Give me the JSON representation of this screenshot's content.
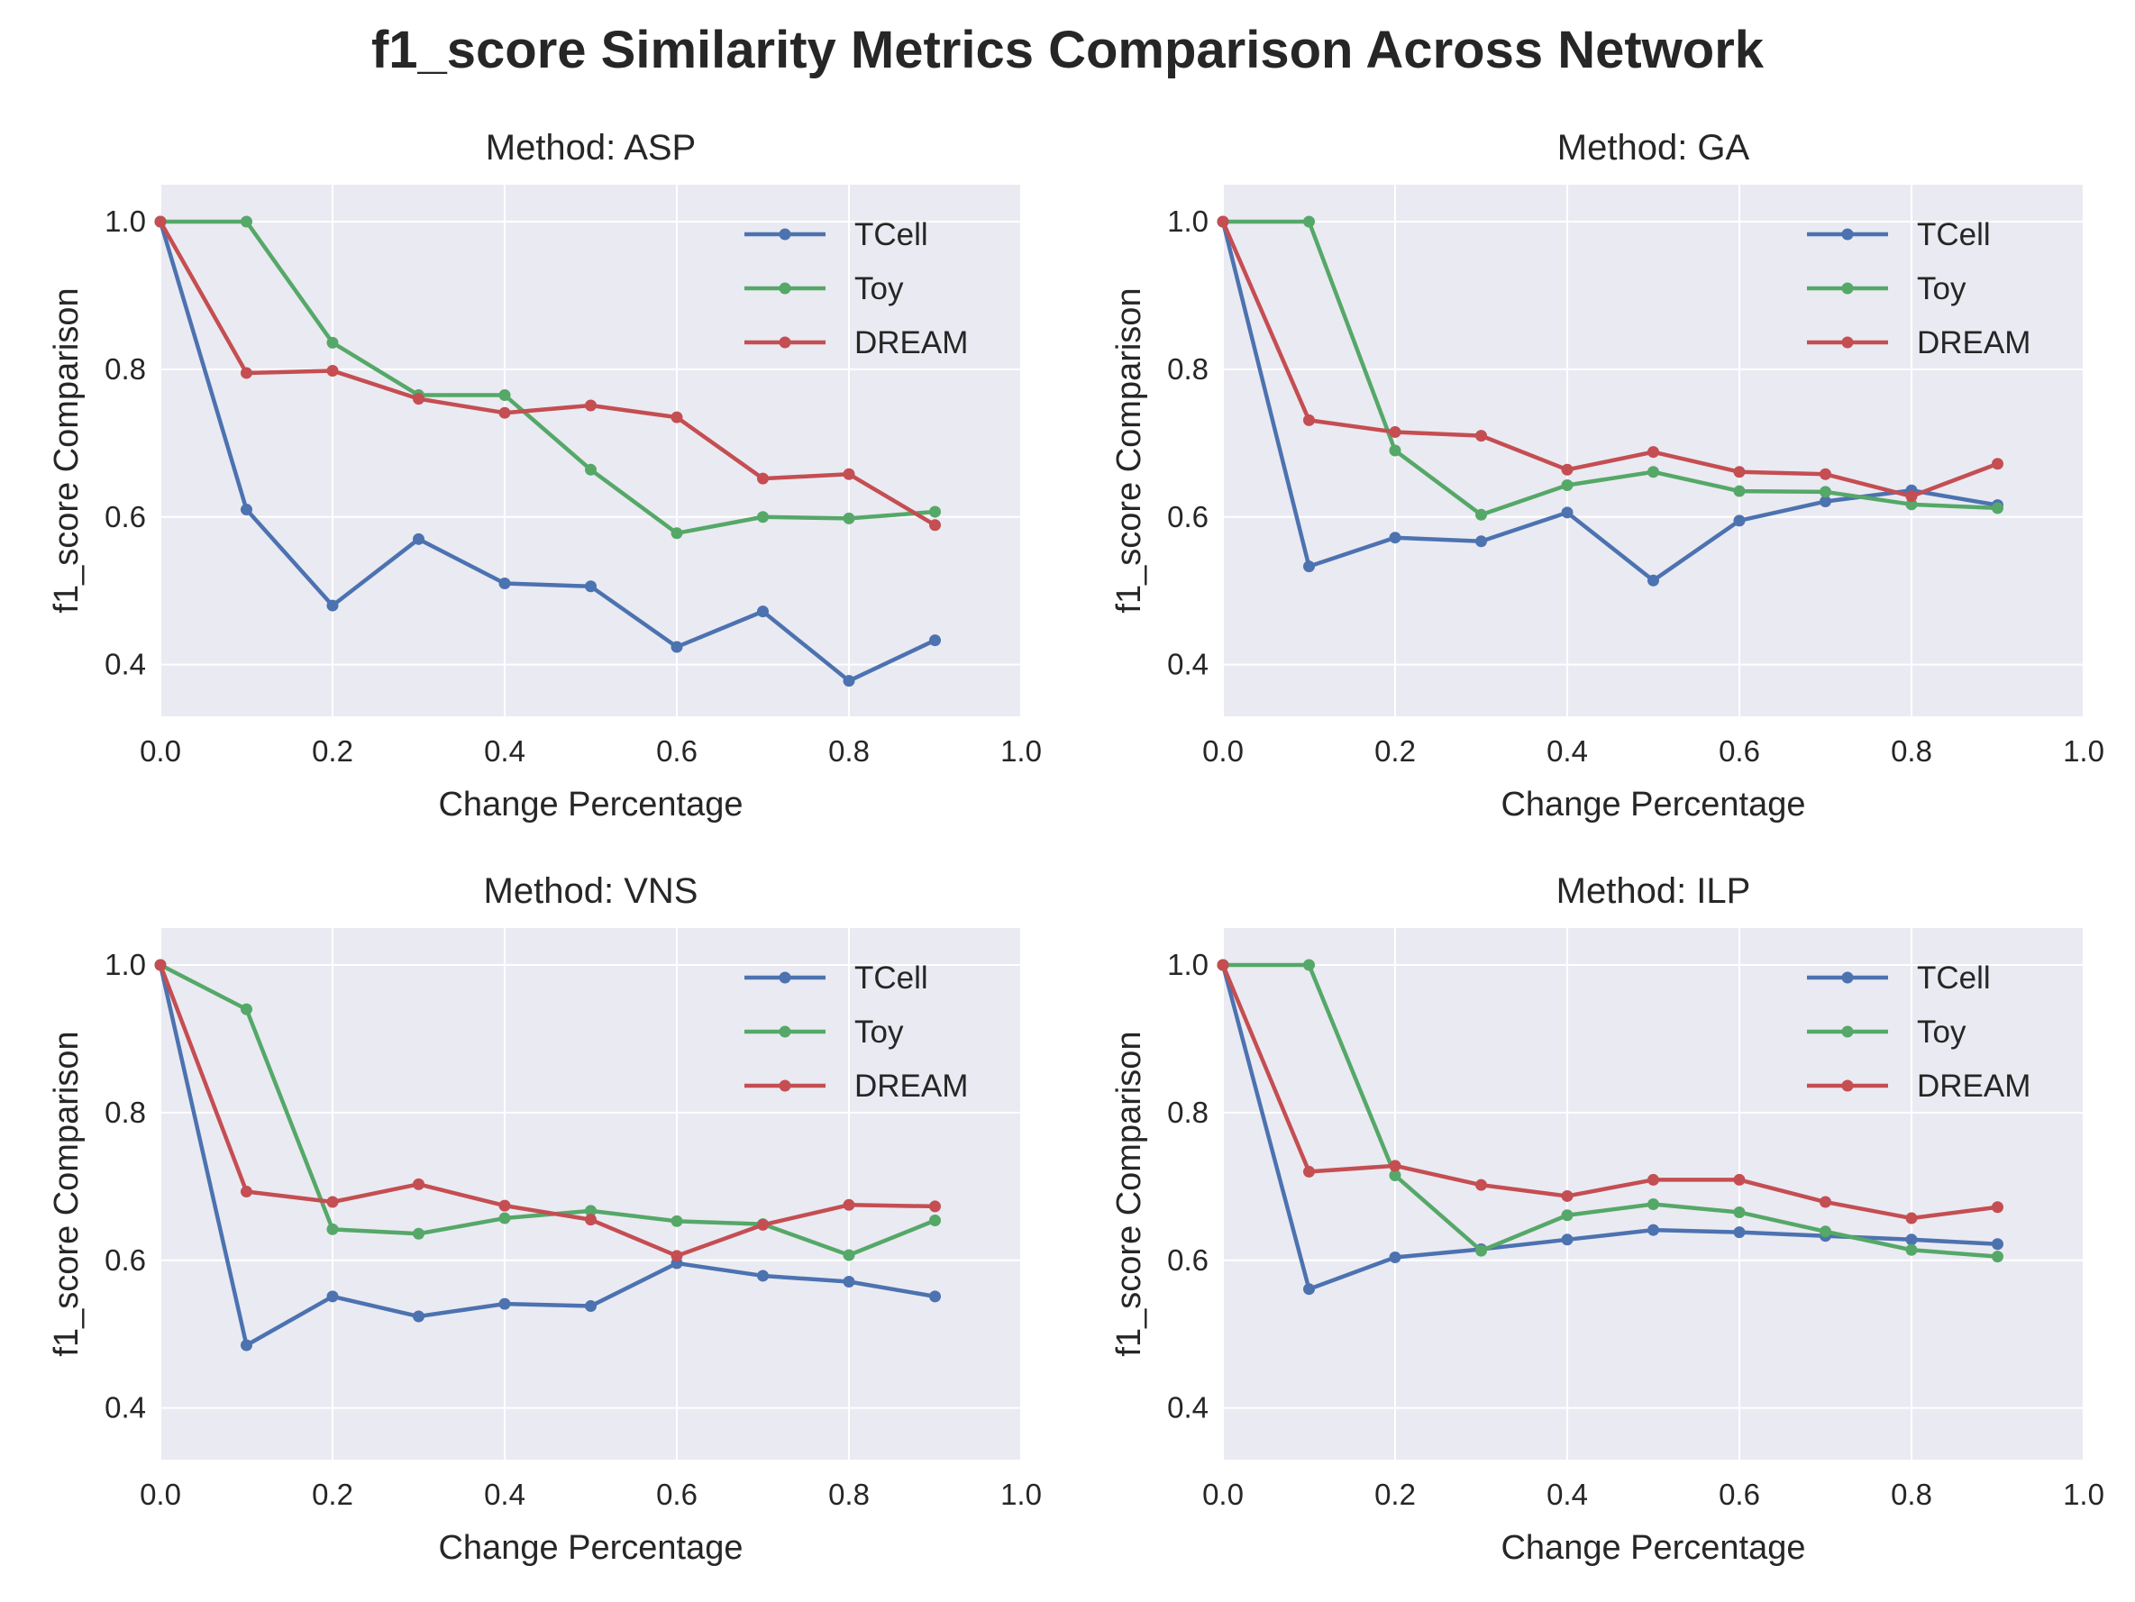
{
  "title": "f1_score Similarity Metrics Comparison Across Network",
  "colors": {
    "TCell": "#4c72b0",
    "Toy": "#55a868",
    "DREAM": "#c44e52",
    "panel_bg": "#eaeaf2",
    "grid": "#ffffff"
  },
  "chart_data": [
    {
      "type": "line",
      "title": "Method: ASP",
      "xlabel": "Change Percentage",
      "ylabel": "f1_score Comparison",
      "xlim": [
        0,
        1.0
      ],
      "ylim": [
        0.33,
        1.05
      ],
      "xticks": [
        "0.0",
        "0.2",
        "0.4",
        "0.6",
        "0.8",
        "1.0"
      ],
      "yticks": [
        "0.4",
        "0.6",
        "0.8",
        "1.0"
      ],
      "grid": true,
      "legend": "top-right",
      "x": [
        0.0,
        0.1,
        0.2,
        0.3,
        0.4,
        0.5,
        0.6,
        0.7,
        0.8,
        0.9
      ],
      "series": [
        {
          "name": "TCell",
          "values": [
            1.0,
            0.61,
            0.48,
            0.57,
            0.51,
            0.506,
            0.424,
            0.472,
            0.378,
            0.433
          ]
        },
        {
          "name": "Toy",
          "values": [
            1.0,
            1.0,
            0.836,
            0.765,
            0.765,
            0.664,
            0.578,
            0.6,
            0.598,
            0.607
          ]
        },
        {
          "name": "DREAM",
          "values": [
            1.0,
            0.795,
            0.798,
            0.76,
            0.741,
            0.751,
            0.735,
            0.652,
            0.658,
            0.589
          ]
        }
      ]
    },
    {
      "type": "line",
      "title": "Method: GA",
      "xlabel": "Change Percentage",
      "ylabel": "f1_score Comparison",
      "xlim": [
        0,
        1.0
      ],
      "ylim": [
        0.33,
        1.05
      ],
      "xticks": [
        "0.0",
        "0.2",
        "0.4",
        "0.6",
        "0.8",
        "1.0"
      ],
      "yticks": [
        "0.4",
        "0.6",
        "0.8",
        "1.0"
      ],
      "grid": true,
      "legend": "top-right",
      "x": [
        0.0,
        0.1,
        0.2,
        0.3,
        0.4,
        0.5,
        0.6,
        0.7,
        0.8,
        0.9
      ],
      "series": [
        {
          "name": "TCell",
          "values": [
            1.0,
            0.533,
            0.572,
            0.567,
            0.606,
            0.514,
            0.595,
            0.621,
            0.636,
            0.616
          ]
        },
        {
          "name": "Toy",
          "values": [
            1.0,
            1.0,
            0.69,
            0.603,
            0.643,
            0.661,
            0.635,
            0.634,
            0.617,
            0.612
          ]
        },
        {
          "name": "DREAM",
          "values": [
            1.0,
            0.731,
            0.715,
            0.71,
            0.664,
            0.688,
            0.661,
            0.658,
            0.628,
            0.672
          ]
        }
      ]
    },
    {
      "type": "line",
      "title": "Method: VNS",
      "xlabel": "Change Percentage",
      "ylabel": "f1_score Comparison",
      "xlim": [
        0,
        1.0
      ],
      "ylim": [
        0.33,
        1.05
      ],
      "xticks": [
        "0.0",
        "0.2",
        "0.4",
        "0.6",
        "0.8",
        "1.0"
      ],
      "yticks": [
        "0.4",
        "0.6",
        "0.8",
        "1.0"
      ],
      "grid": true,
      "legend": "top-right",
      "x": [
        0.0,
        0.1,
        0.2,
        0.3,
        0.4,
        0.5,
        0.6,
        0.7,
        0.8,
        0.9
      ],
      "series": [
        {
          "name": "TCell",
          "values": [
            1.0,
            0.485,
            0.551,
            0.524,
            0.541,
            0.538,
            0.596,
            0.579,
            0.571,
            0.551
          ]
        },
        {
          "name": "Toy",
          "values": [
            1.0,
            0.94,
            0.642,
            0.636,
            0.657,
            0.667,
            0.653,
            0.649,
            0.607,
            0.654
          ]
        },
        {
          "name": "DREAM",
          "values": [
            1.0,
            0.693,
            0.679,
            0.703,
            0.674,
            0.655,
            0.606,
            0.648,
            0.675,
            0.673
          ]
        }
      ]
    },
    {
      "type": "line",
      "title": "Method: ILP",
      "xlabel": "Change Percentage",
      "ylabel": "f1_score Comparison",
      "xlim": [
        0,
        1.0
      ],
      "ylim": [
        0.33,
        1.05
      ],
      "xticks": [
        "0.0",
        "0.2",
        "0.4",
        "0.6",
        "0.8",
        "1.0"
      ],
      "yticks": [
        "0.4",
        "0.6",
        "0.8",
        "1.0"
      ],
      "grid": true,
      "legend": "top-right",
      "x": [
        0.0,
        0.1,
        0.2,
        0.3,
        0.4,
        0.5,
        0.6,
        0.7,
        0.8,
        0.9
      ],
      "series": [
        {
          "name": "TCell",
          "values": [
            1.0,
            0.561,
            0.604,
            0.615,
            0.628,
            0.641,
            0.638,
            0.633,
            0.628,
            0.622
          ]
        },
        {
          "name": "Toy",
          "values": [
            1.0,
            1.0,
            0.715,
            0.613,
            0.661,
            0.676,
            0.665,
            0.639,
            0.614,
            0.605
          ]
        },
        {
          "name": "DREAM",
          "values": [
            1.0,
            0.72,
            0.728,
            0.702,
            0.687,
            0.709,
            0.709,
            0.679,
            0.657,
            0.672
          ]
        }
      ]
    }
  ]
}
